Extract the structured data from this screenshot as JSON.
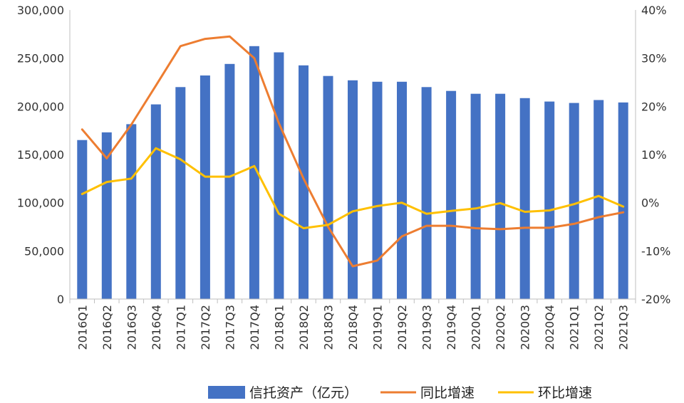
{
  "chart_data": {
    "type": "bar",
    "categories": [
      "2016Q1",
      "2016Q2",
      "2016Q3",
      "2016Q4",
      "2017Q1",
      "2017Q2",
      "2017Q3",
      "2017Q4",
      "2018Q1",
      "2018Q2",
      "2018Q3",
      "2018Q4",
      "2019Q1",
      "2019Q2",
      "2019Q3",
      "2019Q4",
      "2020Q1",
      "2020Q2",
      "2020Q3",
      "2020Q4",
      "2021Q1",
      "2021Q2",
      "2021Q3"
    ],
    "series": [
      {
        "name": "信托资产（亿元）",
        "type": "bar",
        "axis": "left",
        "color": "#4472C4",
        "values": [
          165000,
          173000,
          181500,
          202000,
          220000,
          232000,
          244000,
          262500,
          256000,
          242500,
          231500,
          227000,
          225500,
          225500,
          220000,
          216000,
          213000,
          213000,
          208500,
          205000,
          203500,
          206500,
          204000
        ]
      },
      {
        "name": "同比增速",
        "type": "line",
        "axis": "right",
        "color": "#ED7D31",
        "values": [
          15.2,
          9.2,
          16.2,
          24.3,
          32.5,
          34.0,
          34.5,
          30.0,
          16.5,
          5.0,
          -5.0,
          -13.2,
          -12.0,
          -7.0,
          -4.8,
          -4.8,
          -5.3,
          -5.5,
          -5.2,
          -5.2,
          -4.4,
          -3.0,
          -2.0
        ]
      },
      {
        "name": "环比增速",
        "type": "line",
        "axis": "right",
        "color": "#FFC000",
        "values": [
          1.8,
          4.3,
          5.0,
          11.3,
          9.0,
          5.4,
          5.4,
          7.6,
          -2.3,
          -5.3,
          -4.6,
          -1.8,
          -0.7,
          0.0,
          -2.3,
          -1.7,
          -1.2,
          -0.1,
          -1.9,
          -1.6,
          -0.3,
          1.4,
          -0.8
        ]
      }
    ],
    "y_left": {
      "min": 0,
      "max": 300000,
      "ticks": [
        "0",
        "50,000",
        "100,000",
        "150,000",
        "200,000",
        "250,000",
        "300,000"
      ]
    },
    "y_right": {
      "min": -20,
      "max": 40,
      "ticks": [
        "-20%",
        "-10%",
        "0%",
        "10%",
        "20%",
        "30%",
        "40%"
      ]
    },
    "grid": false,
    "legend_position": "bottom"
  }
}
